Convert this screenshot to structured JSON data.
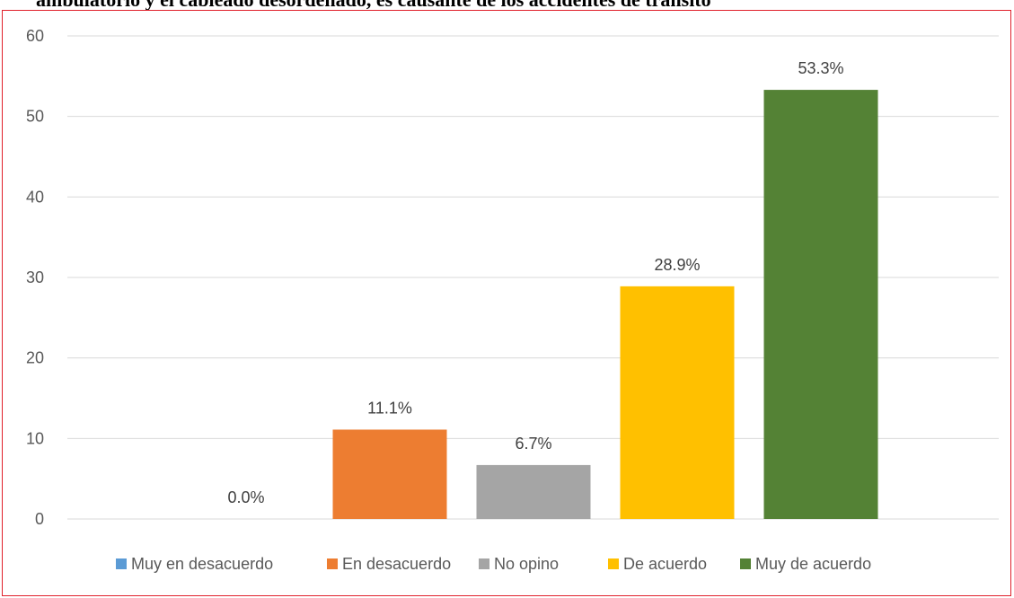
{
  "chart_data": {
    "type": "bar",
    "title": "ambulatorio y el cableado desordenado, es causante de los accidentes de tránsito",
    "categories": [
      "Muy en desacuerdo",
      "En desacuerdo",
      "No opino",
      "De acuerdo",
      "Muy de acuerdo"
    ],
    "values": [
      0.0,
      11.1,
      6.7,
      28.9,
      53.3
    ],
    "data_labels": [
      "0.0%",
      "11.1%",
      "6.7%",
      "28.9%",
      "53.3%"
    ],
    "colors": [
      "#5b9bd5",
      "#ed7d31",
      "#a5a5a5",
      "#ffc000",
      "#548235"
    ],
    "ylim": [
      0,
      60
    ],
    "yticks": [
      "0",
      "10",
      "20",
      "30",
      "40",
      "50",
      "60"
    ],
    "grid": true,
    "legend_position": "bottom"
  }
}
